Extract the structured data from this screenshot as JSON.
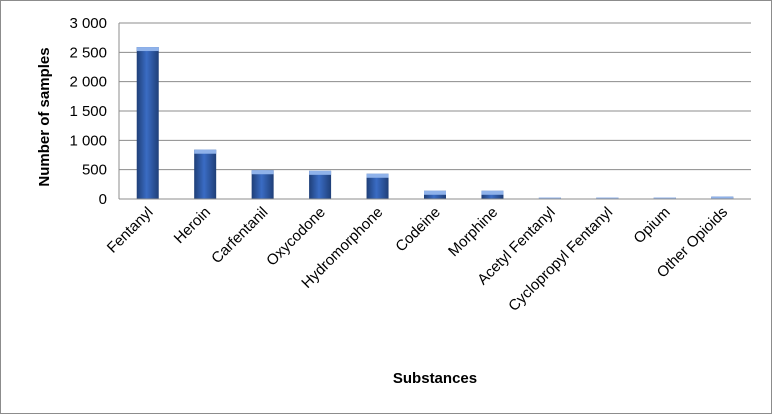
{
  "chart_data": {
    "type": "bar",
    "title": "",
    "xlabel": "Substances",
    "ylabel": "Number of samples",
    "categories": [
      "Fentanyl",
      "Heroin",
      "Carfentanil",
      "Oxycodone",
      "Hydromorphone",
      "Codeine",
      "Morphine",
      "Acetyl Fentanyl",
      "Cyclopropyl Fentanyl",
      "Opium",
      "Other Opioids"
    ],
    "values": [
      2590,
      840,
      490,
      480,
      430,
      140,
      140,
      15,
      15,
      5,
      40
    ],
    "ylim": [
      0,
      3000
    ],
    "yticks": [
      0,
      500,
      1000,
      1500,
      2000,
      2500,
      3000
    ],
    "ytick_labels": [
      "0",
      "500",
      "1 000",
      "1 500",
      "2 000",
      "2 500",
      "3 000"
    ],
    "grid": true,
    "legend": "none",
    "colors": {
      "bar_dark": "#1f3f78",
      "bar_mid": "#3a6cc4",
      "bar_light": "#8fb2ea",
      "grid": "#8c8c8c"
    }
  }
}
